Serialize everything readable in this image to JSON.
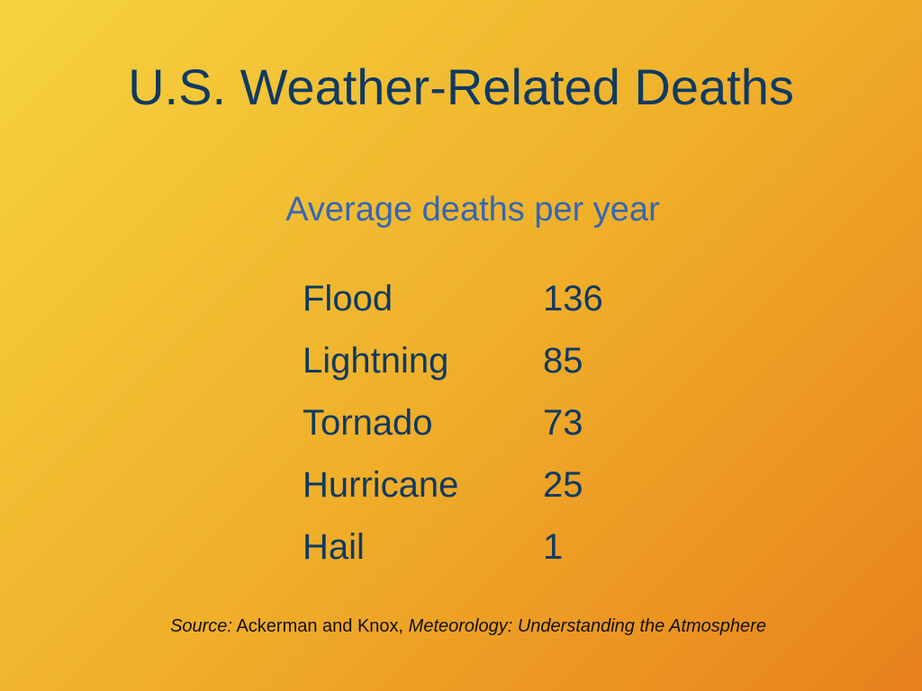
{
  "slide": {
    "title": "U.S. Weather-Related Deaths",
    "subtitle": "Average deaths per year"
  },
  "table": {
    "rows": [
      {
        "label": "Flood",
        "value": "136"
      },
      {
        "label": "Lightning",
        "value": "85"
      },
      {
        "label": "Tornado",
        "value": "73"
      },
      {
        "label": "Hurricane",
        "value": "25"
      },
      {
        "label": "Hail",
        "value": "1"
      }
    ]
  },
  "source": {
    "prefix": "Source:",
    "authors": " Ackerman and Knox, ",
    "book": "Meteorology: Understanding the Atmosphere"
  },
  "colors": {
    "title": "#0f3a63",
    "subtitle": "#3567b5",
    "background_start": "#f6d33f",
    "background_end": "#e8811c"
  }
}
